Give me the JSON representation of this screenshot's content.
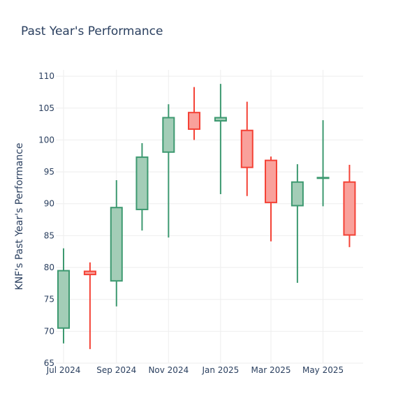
{
  "chart_data": {
    "type": "candlestick",
    "title": "Past Year's Performance",
    "ylabel": "KNF's Past Year's Performance",
    "xlabel": "",
    "ylim": [
      65,
      111
    ],
    "yticks": [
      65,
      70,
      75,
      80,
      85,
      90,
      95,
      100,
      105,
      110
    ],
    "xlim": [
      "2024-06-22",
      "2025-06-17"
    ],
    "xticks": [
      {
        "date": "2024-07-01",
        "label": "Jul 2024"
      },
      {
        "date": "2024-09-01",
        "label": "Sep 2024"
      },
      {
        "date": "2024-11-01",
        "label": "Nov 2024"
      },
      {
        "date": "2025-01-01",
        "label": "Jan 2025"
      },
      {
        "date": "2025-03-01",
        "label": "Mar 2025"
      },
      {
        "date": "2025-05-01",
        "label": "May 2025"
      }
    ],
    "colors": {
      "increasing_line": "#3d9970",
      "increasing_fill": "#a3cdb7",
      "decreasing_line": "#f44236",
      "decreasing_fill": "#f9a19b"
    },
    "candles": [
      {
        "date": "2024-07-01",
        "open": 70.5,
        "high": 83.0,
        "low": 68.1,
        "close": 79.5
      },
      {
        "date": "2024-08-01",
        "open": 79.4,
        "high": 80.8,
        "low": 67.2,
        "close": 78.9
      },
      {
        "date": "2024-09-01",
        "open": 77.9,
        "high": 93.7,
        "low": 73.9,
        "close": 89.4
      },
      {
        "date": "2024-10-01",
        "open": 89.1,
        "high": 99.5,
        "low": 85.8,
        "close": 97.3
      },
      {
        "date": "2024-11-01",
        "open": 98.1,
        "high": 105.6,
        "low": 84.7,
        "close": 103.5
      },
      {
        "date": "2024-12-01",
        "open": 104.3,
        "high": 108.3,
        "low": 100.0,
        "close": 101.7
      },
      {
        "date": "2025-01-01",
        "open": 103.0,
        "high": 108.8,
        "low": 91.5,
        "close": 103.5
      },
      {
        "date": "2025-02-01",
        "open": 101.5,
        "high": 106.0,
        "low": 91.2,
        "close": 95.7
      },
      {
        "date": "2025-03-01",
        "open": 96.8,
        "high": 97.4,
        "low": 84.1,
        "close": 90.2
      },
      {
        "date": "2025-04-01",
        "open": 89.7,
        "high": 96.2,
        "low": 77.6,
        "close": 93.4
      },
      {
        "date": "2025-05-01",
        "open": 94.0,
        "high": 103.1,
        "low": 89.6,
        "close": 94.1
      },
      {
        "date": "2025-06-01",
        "open": 93.4,
        "high": 96.1,
        "low": 83.2,
        "close": 85.1
      }
    ]
  }
}
